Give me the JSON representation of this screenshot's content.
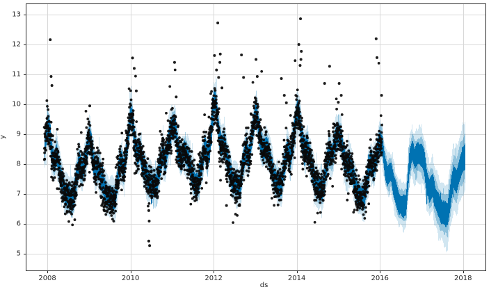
{
  "figure": {
    "kind": "prophet-forecast-plot",
    "xlabel": "ds",
    "ylabel": "y"
  },
  "chart_data": {
    "type": "line",
    "description": "Time-series forecast plot: black daily observed points (Dec 2007 - Jan 2016), dark blue yhat line with weekly seasonality ribbon, translucent blue uncertainty interval extending through a 2-year forecast to Jan 2018. Strong yearly seasonality: peaks each January, September shoulder bumps, summer troughs.",
    "xlabel": "ds",
    "ylabel": "y",
    "xlim": [
      2007.48,
      2018.54
    ],
    "ylim": [
      4.45,
      13.37
    ],
    "xticks": [
      2008,
      2010,
      2012,
      2014,
      2016,
      2018
    ],
    "yticks": [
      5,
      6,
      7,
      8,
      9,
      10,
      11,
      12,
      13
    ],
    "grid": true,
    "legend": "none",
    "history_range": [
      2007.92,
      2016.05
    ],
    "forecast_range": [
      2016.05,
      2018.05
    ],
    "colors": {
      "line": "#0072B2",
      "band_fill": "rgba(0,114,178,0.18)",
      "band_inner_fill": "rgba(0,114,178,0.32)",
      "dots": "#0a0a0a",
      "grid": "#d8d8d8",
      "spine": "#262626",
      "tick_text": "#262626",
      "background": "#ffffff"
    },
    "line_ribbon_halfwidth": 0.27,
    "inner_band_halfwidth": 0.4,
    "band_halfwidth_history": 0.52,
    "band_halfwidth_forecast_end": 1.02,
    "inner_band_halfwidth_forecast_end": 0.65,
    "ribbon_halfwidth_forecast_end": 0.34,
    "yhat_knots": [
      [
        2007.92,
        8.45
      ],
      [
        2007.96,
        8.9
      ],
      [
        2008.0,
        9.35
      ],
      [
        2008.05,
        9.1
      ],
      [
        2008.1,
        8.35
      ],
      [
        2008.16,
        8.1
      ],
      [
        2008.22,
        8.35
      ],
      [
        2008.3,
        7.7
      ],
      [
        2008.42,
        7.0
      ],
      [
        2008.52,
        6.9
      ],
      [
        2008.62,
        6.85
      ],
      [
        2008.7,
        7.6
      ],
      [
        2008.76,
        8.05
      ],
      [
        2008.83,
        7.75
      ],
      [
        2008.91,
        8.2
      ],
      [
        2009.0,
        8.95
      ],
      [
        2009.05,
        8.7
      ],
      [
        2009.1,
        8.05
      ],
      [
        2009.16,
        7.8
      ],
      [
        2009.22,
        7.95
      ],
      [
        2009.3,
        7.45
      ],
      [
        2009.42,
        6.95
      ],
      [
        2009.52,
        6.9
      ],
      [
        2009.62,
        6.8
      ],
      [
        2009.7,
        7.7
      ],
      [
        2009.76,
        8.1
      ],
      [
        2009.83,
        7.8
      ],
      [
        2009.91,
        8.6
      ],
      [
        2010.0,
        9.75
      ],
      [
        2010.04,
        9.5
      ],
      [
        2010.1,
        8.7
      ],
      [
        2010.16,
        8.3
      ],
      [
        2010.22,
        8.5
      ],
      [
        2010.3,
        7.95
      ],
      [
        2010.42,
        7.45
      ],
      [
        2010.52,
        7.35
      ],
      [
        2010.62,
        7.3
      ],
      [
        2010.7,
        7.9
      ],
      [
        2010.76,
        8.35
      ],
      [
        2010.83,
        8.1
      ],
      [
        2010.91,
        8.75
      ],
      [
        2011.0,
        9.3
      ],
      [
        2011.07,
        9.25
      ],
      [
        2011.13,
        8.5
      ],
      [
        2011.2,
        8.2
      ],
      [
        2011.3,
        8.45
      ],
      [
        2011.4,
        8.1
      ],
      [
        2011.5,
        7.5
      ],
      [
        2011.62,
        7.3
      ],
      [
        2011.7,
        7.95
      ],
      [
        2011.78,
        8.55
      ],
      [
        2011.85,
        8.3
      ],
      [
        2011.92,
        8.9
      ],
      [
        2012.0,
        10.1
      ],
      [
        2012.05,
        10.05
      ],
      [
        2012.12,
        9.0
      ],
      [
        2012.18,
        8.6
      ],
      [
        2012.25,
        8.75
      ],
      [
        2012.32,
        8.15
      ],
      [
        2012.45,
        7.45
      ],
      [
        2012.55,
        7.3
      ],
      [
        2012.63,
        7.25
      ],
      [
        2012.7,
        8.0
      ],
      [
        2012.77,
        8.5
      ],
      [
        2012.84,
        8.2
      ],
      [
        2012.92,
        9.0
      ],
      [
        2013.0,
        9.75
      ],
      [
        2013.05,
        9.5
      ],
      [
        2013.12,
        8.8
      ],
      [
        2013.18,
        8.45
      ],
      [
        2013.26,
        8.6
      ],
      [
        2013.33,
        8.3
      ],
      [
        2013.45,
        7.5
      ],
      [
        2013.55,
        7.35
      ],
      [
        2013.62,
        7.3
      ],
      [
        2013.7,
        8.0
      ],
      [
        2013.77,
        8.5
      ],
      [
        2013.84,
        8.2
      ],
      [
        2013.92,
        8.9
      ],
      [
        2014.0,
        9.8
      ],
      [
        2014.06,
        9.6
      ],
      [
        2014.12,
        8.8
      ],
      [
        2014.18,
        8.45
      ],
      [
        2014.26,
        8.55
      ],
      [
        2014.33,
        8.1
      ],
      [
        2014.45,
        7.3
      ],
      [
        2014.55,
        7.2
      ],
      [
        2014.62,
        7.15
      ],
      [
        2014.7,
        7.9
      ],
      [
        2014.77,
        8.4
      ],
      [
        2014.84,
        8.25
      ],
      [
        2014.92,
        8.8
      ],
      [
        2015.0,
        9.05
      ],
      [
        2015.06,
        8.85
      ],
      [
        2015.12,
        8.3
      ],
      [
        2015.18,
        7.95
      ],
      [
        2015.26,
        8.0
      ],
      [
        2015.33,
        7.75
      ],
      [
        2015.45,
        7.0
      ],
      [
        2015.55,
        6.9
      ],
      [
        2015.62,
        6.85
      ],
      [
        2015.7,
        7.6
      ],
      [
        2015.77,
        8.1
      ],
      [
        2015.84,
        7.85
      ],
      [
        2015.92,
        8.35
      ],
      [
        2016.0,
        8.8
      ],
      [
        2016.05,
        8.65
      ],
      [
        2016.12,
        7.9
      ],
      [
        2016.18,
        7.6
      ],
      [
        2016.26,
        7.75
      ],
      [
        2016.33,
        7.25
      ],
      [
        2016.45,
        6.7
      ],
      [
        2016.55,
        6.6
      ],
      [
        2016.62,
        6.65
      ],
      [
        2016.7,
        8.0
      ],
      [
        2016.76,
        8.45
      ],
      [
        2016.83,
        8.2
      ],
      [
        2016.91,
        8.35
      ],
      [
        2017.0,
        8.25
      ],
      [
        2017.06,
        8.05
      ],
      [
        2017.12,
        7.4
      ],
      [
        2017.18,
        7.1
      ],
      [
        2017.26,
        7.3
      ],
      [
        2017.33,
        6.85
      ],
      [
        2017.45,
        6.45
      ],
      [
        2017.55,
        6.35
      ],
      [
        2017.62,
        6.3
      ],
      [
        2017.7,
        7.1
      ],
      [
        2017.77,
        7.6
      ],
      [
        2017.84,
        7.45
      ],
      [
        2017.92,
        7.9
      ],
      [
        2018.0,
        8.15
      ],
      [
        2018.05,
        8.3
      ]
    ],
    "scatter": {
      "points_per_year": 365,
      "noise_sd": 0.3,
      "weekend_offset": -0.1,
      "high_season_tail_prob": 0.085,
      "high_season_tail_scale": 0.5,
      "low_tail_prob": 0.006,
      "dot_radius": 1.9,
      "outliers": [
        [
          2008.07,
          12.16
        ],
        [
          2008.09,
          10.93
        ],
        [
          2008.11,
          10.63
        ],
        [
          2009.02,
          9.95
        ],
        [
          2010.05,
          11.55
        ],
        [
          2010.09,
          11.2
        ],
        [
          2010.14,
          10.45
        ],
        [
          2010.44,
          6.45
        ],
        [
          2010.45,
          6.1
        ],
        [
          2010.44,
          5.43
        ],
        [
          2010.46,
          5.28
        ],
        [
          2011.06,
          11.4
        ],
        [
          2011.1,
          10.25
        ],
        [
          2012.02,
          11.63
        ],
        [
          2012.07,
          11.15
        ],
        [
          2012.1,
          12.72
        ],
        [
          2012.12,
          10.9
        ],
        [
          2012.15,
          11.4
        ],
        [
          2012.16,
          11.68
        ],
        [
          2012.2,
          10.55
        ],
        [
          2012.31,
          6.62
        ],
        [
          2012.67,
          11.65
        ],
        [
          2012.72,
          10.9
        ],
        [
          2013.02,
          11.5
        ],
        [
          2013.05,
          10.93
        ],
        [
          2013.55,
          6.64
        ],
        [
          2013.63,
          10.86
        ],
        [
          2013.7,
          10.3
        ],
        [
          2013.75,
          10.05
        ],
        [
          2014.05,
          12.0
        ],
        [
          2014.08,
          11.3
        ],
        [
          2014.09,
          12.86
        ],
        [
          2014.1,
          11.5
        ],
        [
          2014.11,
          11.77
        ],
        [
          2014.67,
          10.7
        ],
        [
          2014.79,
          11.27
        ],
        [
          2015.0,
          10.07
        ],
        [
          2015.02,
          10.7
        ],
        [
          2015.07,
          10.3
        ],
        [
          2015.91,
          12.19
        ],
        [
          2015.93,
          11.56
        ],
        [
          2016.04,
          10.3
        ]
      ]
    }
  }
}
